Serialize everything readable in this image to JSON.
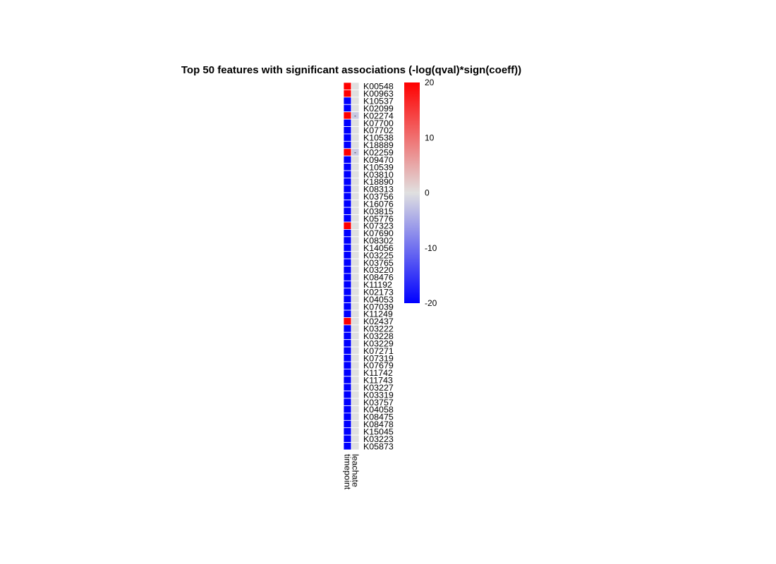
{
  "chart_data": {
    "type": "heatmap",
    "title": "Top 50 features with significant associations (-log(qval)*sign(coeff))",
    "columns": [
      "timepoint",
      "leachate"
    ],
    "rows": [
      "K00548",
      "K00963",
      "K10537",
      "K02099",
      "K02274",
      "K07700",
      "K07702",
      "K10538",
      "K18889",
      "K02259",
      "K09470",
      "K10539",
      "K03810",
      "K18890",
      "K08313",
      "K03756",
      "K16076",
      "K03815",
      "K05776",
      "K07323",
      "K07690",
      "K08302",
      "K14056",
      "K03225",
      "K03765",
      "K03220",
      "K08476",
      "K11192",
      "K02173",
      "K04053",
      "K07039",
      "K11249",
      "K02437",
      "K03222",
      "K03228",
      "K03229",
      "K07271",
      "K07319",
      "K07679",
      "K11742",
      "K11743",
      "K03227",
      "K03319",
      "K03757",
      "K04058",
      "K08475",
      "K08478",
      "K15045",
      "K03223",
      "K05873"
    ],
    "values": [
      [
        20,
        0
      ],
      [
        20,
        0
      ],
      [
        -20,
        0
      ],
      [
        -20,
        0
      ],
      [
        20,
        -2
      ],
      [
        -20,
        0
      ],
      [
        -20,
        0
      ],
      [
        -20,
        0
      ],
      [
        -20,
        0
      ],
      [
        20,
        -2
      ],
      [
        -20,
        0
      ],
      [
        -20,
        0
      ],
      [
        -20,
        0
      ],
      [
        -20,
        0
      ],
      [
        -20,
        0
      ],
      [
        -20,
        0
      ],
      [
        -20,
        0
      ],
      [
        -20,
        0
      ],
      [
        -20,
        0
      ],
      [
        20,
        0
      ],
      [
        -20,
        0
      ],
      [
        -20,
        0
      ],
      [
        -20,
        0
      ],
      [
        -20,
        0
      ],
      [
        -20,
        0
      ],
      [
        -20,
        0
      ],
      [
        -20,
        0
      ],
      [
        -20,
        0
      ],
      [
        -20,
        0
      ],
      [
        -20,
        0
      ],
      [
        -20,
        0
      ],
      [
        -20,
        0
      ],
      [
        20,
        0
      ],
      [
        -20,
        0
      ],
      [
        -20,
        0
      ],
      [
        -20,
        0
      ],
      [
        -20,
        0
      ],
      [
        -20,
        0
      ],
      [
        -20,
        0
      ],
      [
        -20,
        0
      ],
      [
        -20,
        0
      ],
      [
        -20,
        0
      ],
      [
        -20,
        0
      ],
      [
        -20,
        0
      ],
      [
        -20,
        0
      ],
      [
        -20,
        0
      ],
      [
        -20,
        0
      ],
      [
        -20,
        0
      ],
      [
        -20,
        0
      ],
      [
        -20,
        0
      ]
    ],
    "cell_marks": [
      {
        "row": 4,
        "col": 1,
        "text": "-"
      },
      {
        "row": 9,
        "col": 1,
        "text": "-"
      }
    ],
    "color_scale": {
      "min": -20,
      "max": 20,
      "low": "#0000ff",
      "mid": "#e0e0e0",
      "high": "#ff0000"
    },
    "legend": {
      "ticks": [
        20,
        10,
        0,
        -10,
        -20
      ],
      "placement": "right"
    }
  }
}
